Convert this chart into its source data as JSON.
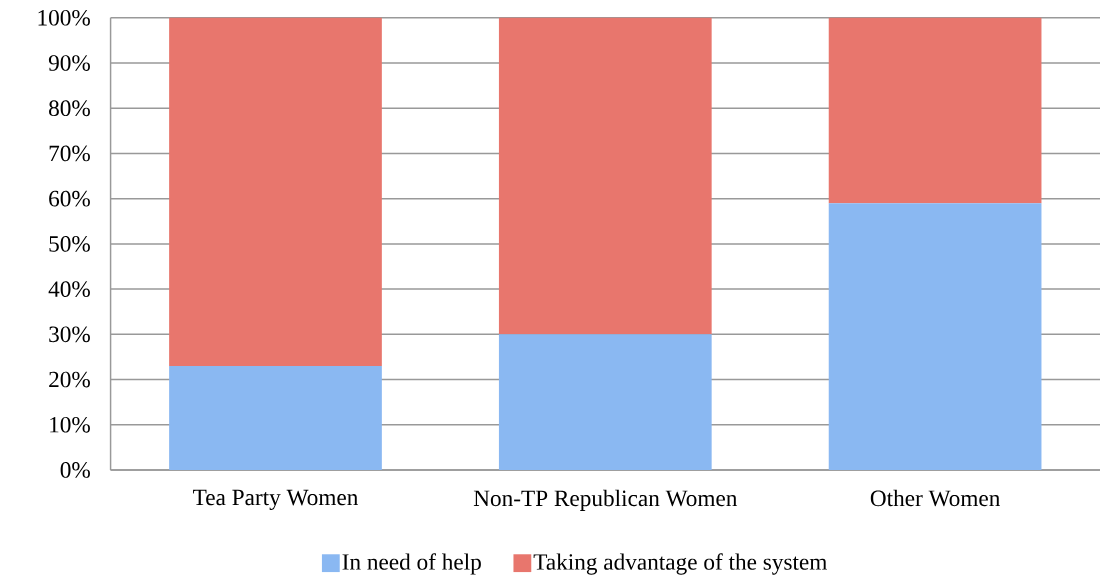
{
  "chart_data": {
    "type": "bar",
    "stacked": true,
    "categories": [
      "Tea Party Women",
      "Non-TP Republican Women",
      "Other Women"
    ],
    "series": [
      {
        "name": "In need of help",
        "color": "#8ab8f2",
        "values": [
          23,
          30,
          59
        ]
      },
      {
        "name": "Taking advantage of the system",
        "color": "#e8766d",
        "values": [
          77,
          70,
          41
        ]
      }
    ],
    "ylim": [
      0,
      100
    ],
    "yticks": [
      {
        "value": 0,
        "label": "0%"
      },
      {
        "value": 10,
        "label": "10%"
      },
      {
        "value": 20,
        "label": "20%"
      },
      {
        "value": 30,
        "label": "30%"
      },
      {
        "value": 40,
        "label": "40%"
      },
      {
        "value": 50,
        "label": "50%"
      },
      {
        "value": 60,
        "label": "60%"
      },
      {
        "value": 70,
        "label": "70%"
      },
      {
        "value": 80,
        "label": "80%"
      },
      {
        "value": 90,
        "label": "90%"
      },
      {
        "value": 100,
        "label": "100%"
      }
    ],
    "grid": "y",
    "legend": "bottom"
  }
}
